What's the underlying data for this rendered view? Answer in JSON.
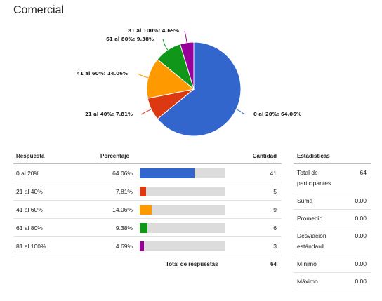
{
  "title": "Comercial",
  "chart_data": {
    "type": "pie",
    "slices": [
      {
        "label": "0 al 20%",
        "value": 64.06,
        "color": "#3366cc"
      },
      {
        "label": "21 al 40%",
        "value": 7.81,
        "color": "#dc3912"
      },
      {
        "label": "41 al 60%",
        "value": 14.06,
        "color": "#ff9900"
      },
      {
        "label": "61 al 80%",
        "value": 9.38,
        "color": "#109618"
      },
      {
        "label": "81 al 100%",
        "value": 4.69,
        "color": "#990099"
      }
    ]
  },
  "pie_labels": [
    "0 al 20%: 64.06%",
    "21 al 40%: 7.81%",
    "41 al 60%: 14.06%",
    "61 al 80%: 9.38%",
    "81 al 100%: 4.69%"
  ],
  "table": {
    "headers": {
      "response": "Respuesta",
      "percentage": "Porcentaje",
      "count": "Cantidad"
    },
    "rows": [
      {
        "label": "0 al 20%",
        "pct_text": "64.06%",
        "pct": 64.06,
        "count": "41",
        "color": "#3366cc"
      },
      {
        "label": "21 al 40%",
        "pct_text": "7.81%",
        "pct": 7.81,
        "count": "5",
        "color": "#dc3912"
      },
      {
        "label": "41 al 60%",
        "pct_text": "14.06%",
        "pct": 14.06,
        "count": "9",
        "color": "#ff9900"
      },
      {
        "label": "61 al 80%",
        "pct_text": "9.38%",
        "pct": 9.38,
        "count": "6",
        "color": "#109618"
      },
      {
        "label": "81 al 100%",
        "pct_text": "4.69%",
        "pct": 4.69,
        "count": "3",
        "color": "#990099"
      }
    ],
    "total_label": "Total de respuestas",
    "total_value": "64"
  },
  "stats": {
    "header": "Estadísticas",
    "rows": [
      {
        "label": "Total de participantes",
        "value": "64"
      },
      {
        "label": "Suma",
        "value": "0.00"
      },
      {
        "label": "Promedio",
        "value": "0.00"
      },
      {
        "label": "Desviación estándard",
        "value": "0.00"
      },
      {
        "label": "Mínimo",
        "value": "0.00"
      },
      {
        "label": "Máximo",
        "value": "0.00"
      }
    ]
  }
}
